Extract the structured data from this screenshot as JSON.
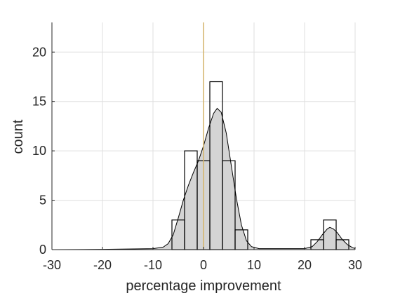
{
  "chart_data": {
    "type": "histogram",
    "title": "",
    "xlabel": "percentage improvement",
    "ylabel": "count",
    "xlim": [
      -30,
      30
    ],
    "ylim": [
      0,
      23
    ],
    "xticks": [
      -30,
      -20,
      -10,
      0,
      10,
      20,
      30
    ],
    "yticks": [
      0,
      5,
      10,
      15,
      20
    ],
    "grid": true,
    "bin_width": 2.5,
    "bins": [
      {
        "x0": -6.25,
        "x1": -3.75,
        "count": 3
      },
      {
        "x0": -3.75,
        "x1": -1.25,
        "count": 10
      },
      {
        "x0": -1.25,
        "x1": 1.25,
        "count": 9
      },
      {
        "x0": 1.25,
        "x1": 3.75,
        "count": 17
      },
      {
        "x0": 3.75,
        "x1": 6.25,
        "count": 9
      },
      {
        "x0": 6.25,
        "x1": 8.75,
        "count": 2
      },
      {
        "x0": 21.25,
        "x1": 23.75,
        "count": 1
      },
      {
        "x0": 23.75,
        "x1": 26.25,
        "count": 3
      },
      {
        "x0": 26.25,
        "x1": 28.75,
        "count": 1
      }
    ],
    "density_curve": [
      [
        -30,
        0
      ],
      [
        -25,
        0.01
      ],
      [
        -20,
        0.03
      ],
      [
        -15,
        0.06
      ],
      [
        -10,
        0.1
      ],
      [
        -8,
        0.25
      ],
      [
        -7,
        0.6
      ],
      [
        -6,
        1.5
      ],
      [
        -5,
        3.2
      ],
      [
        -4,
        5.0
      ],
      [
        -3,
        6.5
      ],
      [
        -2,
        7.8
      ],
      [
        -1,
        9.0
      ],
      [
        0,
        10.5
      ],
      [
        1,
        12.3
      ],
      [
        2,
        13.8
      ],
      [
        2.7,
        14.3
      ],
      [
        3.5,
        13.9
      ],
      [
        4.5,
        11.8
      ],
      [
        5.5,
        8.5
      ],
      [
        6.5,
        5.2
      ],
      [
        7.5,
        2.5
      ],
      [
        8.5,
        0.9
      ],
      [
        9.5,
        0.3
      ],
      [
        11,
        0.1
      ],
      [
        15,
        0.1
      ],
      [
        20,
        0.1
      ],
      [
        21.5,
        0.3
      ],
      [
        22.5,
        0.8
      ],
      [
        23.5,
        1.5
      ],
      [
        24.5,
        2.1
      ],
      [
        25,
        2.25
      ],
      [
        25.7,
        2.1
      ],
      [
        26.5,
        1.7
      ],
      [
        27.5,
        1.0
      ],
      [
        28.5,
        0.5
      ],
      [
        29.5,
        0.2
      ],
      [
        30,
        0.1
      ]
    ],
    "reference_line": {
      "x": 0,
      "color": "#d4b46a"
    },
    "fill_color": "#d4d4d4",
    "edge_color": "#000000"
  }
}
